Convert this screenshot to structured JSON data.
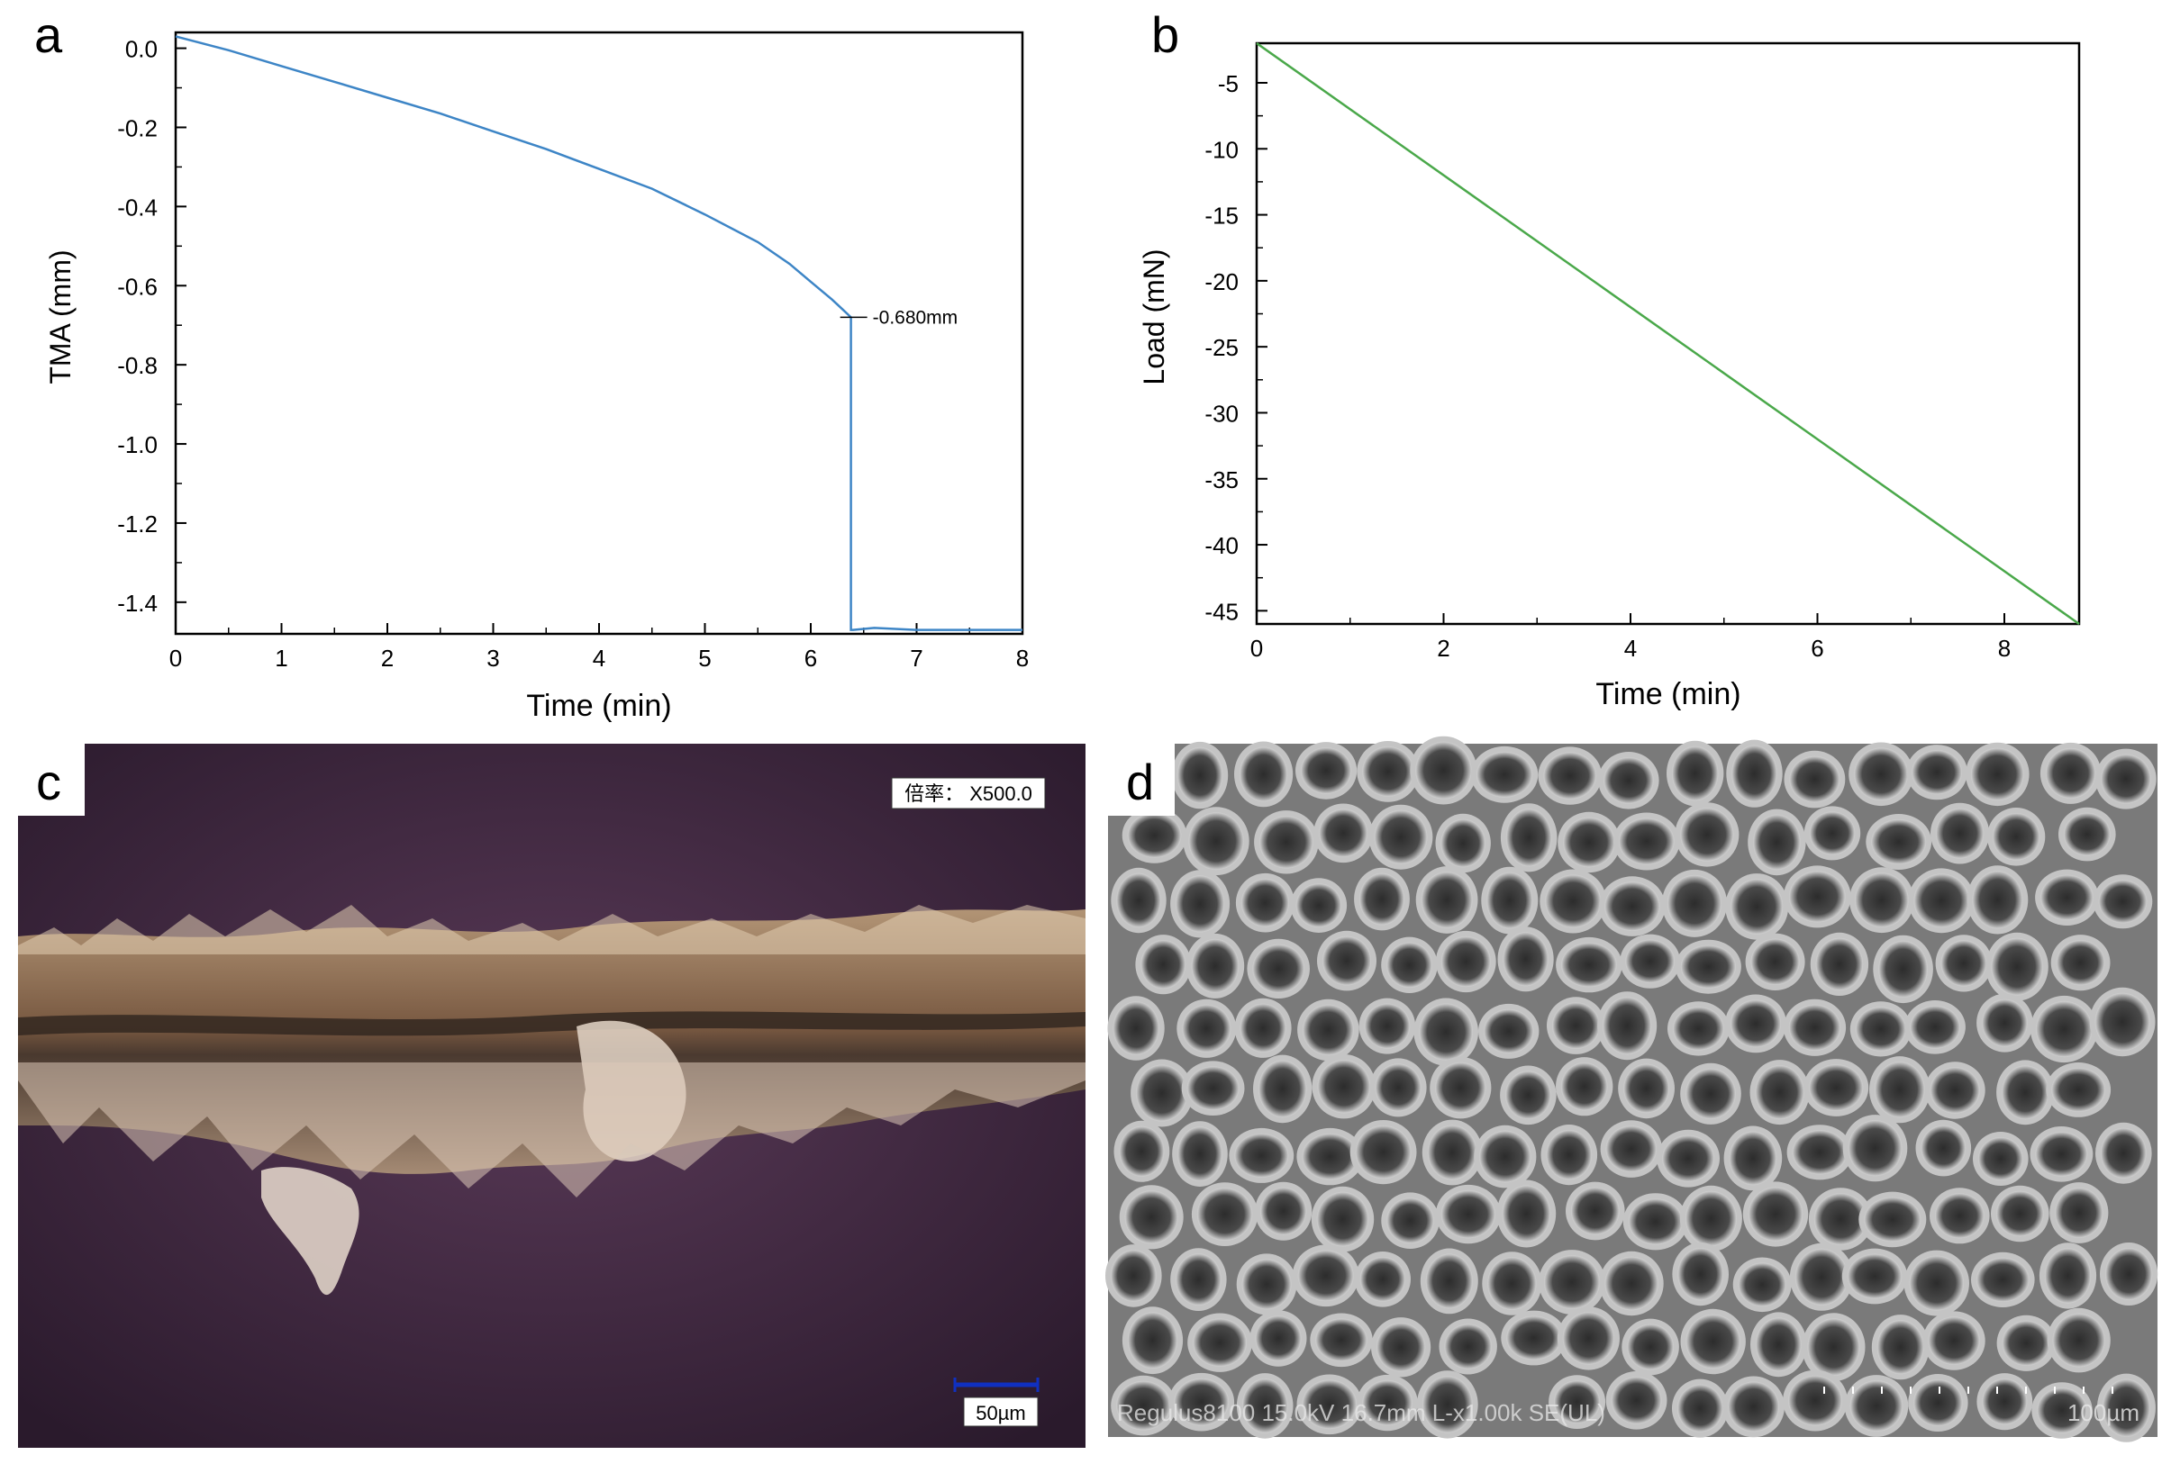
{
  "figure": {
    "panels": [
      {
        "letter": "a"
      },
      {
        "letter": "b"
      },
      {
        "letter": "c",
        "magnification_label": "倍率： X500.0",
        "scale_bar_label": "50µm"
      },
      {
        "letter": "d",
        "sem_info": "Regulus8100 15.0kV 16.7mm L-x1.00k SE(UL)",
        "scale_bar_label": "100µm"
      }
    ],
    "micrograph_colors": {
      "c_background": "#3a2538",
      "c_layer": "#9a7a5c",
      "c_fragment": "#d9c7b8",
      "d_background": "#6e6e6e",
      "d_pore": "#3a3a3a",
      "d_wall": "#bdbdbd"
    }
  },
  "chart_data": [
    {
      "type": "line",
      "panel": "a",
      "title": "",
      "xlabel": "Time (min)",
      "ylabel": "TMA (mm)",
      "xlim": [
        0,
        8
      ],
      "ylim": [
        -1.48,
        0.04
      ],
      "x_ticks": [
        "0",
        "1",
        "2",
        "3",
        "4",
        "5",
        "6",
        "7",
        "8"
      ],
      "y_ticks": [
        "0.0",
        "-0.2",
        "-0.4",
        "-0.6",
        "-0.8",
        "-1.0",
        "-1.2",
        "-1.4"
      ],
      "y_tick_values": [
        0.0,
        -0.2,
        -0.4,
        -0.6,
        -0.8,
        -1.0,
        -1.2,
        -1.4
      ],
      "grid": false,
      "color": "#3d85c6",
      "series": [
        {
          "x": [
            0,
            0.5,
            1,
            1.5,
            2,
            2.5,
            3,
            3.5,
            4,
            4.5,
            5,
            5.5,
            5.8,
            6.0,
            6.2,
            6.3,
            6.38,
            6.38,
            6.4,
            6.6,
            7.0,
            7.5,
            8.0
          ],
          "y": [
            0.03,
            -0.005,
            -0.045,
            -0.085,
            -0.125,
            -0.165,
            -0.21,
            -0.255,
            -0.305,
            -0.355,
            -0.42,
            -0.49,
            -0.545,
            -0.59,
            -0.635,
            -0.66,
            -0.68,
            -1.47,
            -1.47,
            -1.465,
            -1.47,
            -1.47,
            -1.47
          ]
        }
      ],
      "annotation": {
        "text": "-0.680mm",
        "x": 6.38,
        "y": -0.68
      }
    },
    {
      "type": "line",
      "panel": "b",
      "title": "",
      "xlabel": "Time (min)",
      "ylabel": "Load (mN)",
      "xlim": [
        0,
        8.8
      ],
      "ylim": [
        -46,
        -2
      ],
      "x_ticks": [
        "0",
        "2",
        "4",
        "6",
        "8"
      ],
      "x_tick_values": [
        0,
        2,
        4,
        6,
        8
      ],
      "y_ticks": [
        "-5",
        "-10",
        "-15",
        "-20",
        "-25",
        "-30",
        "-35",
        "-40",
        "-45"
      ],
      "y_tick_values": [
        -5,
        -10,
        -15,
        -20,
        -25,
        -30,
        -35,
        -40,
        -45
      ],
      "grid": false,
      "color": "#4aa84a",
      "series": [
        {
          "x": [
            0,
            8.8
          ],
          "y": [
            -2,
            -46
          ]
        }
      ]
    }
  ]
}
